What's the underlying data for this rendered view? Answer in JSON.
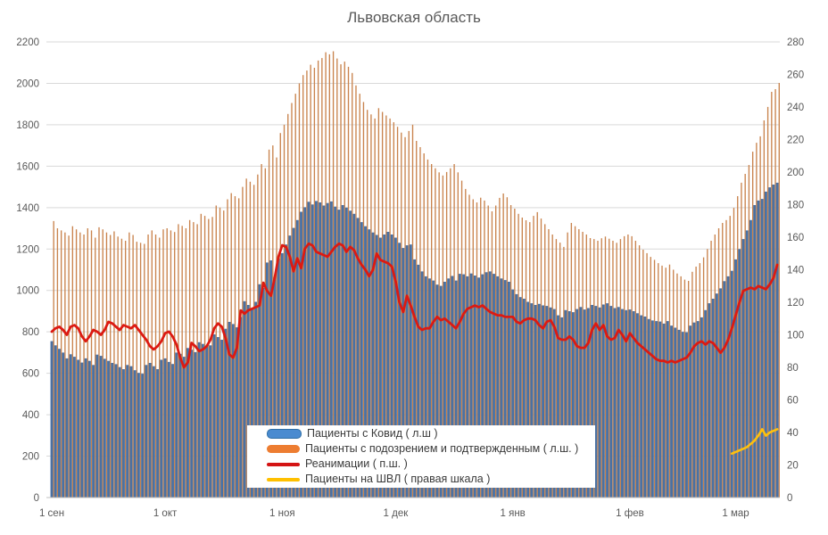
{
  "title": "Львовская область",
  "legend": {
    "items": [
      {
        "label": "Пациенты с Ковид ( л.ш )",
        "swatch": "bar",
        "color": "#4a8bd0",
        "border": "#2e6ea6"
      },
      {
        "label": "Пациенты с подозрением и подтвержденным ( л.ш. )",
        "swatch": "bar",
        "color": "#ed7d31",
        "border": "#ed7d31"
      },
      {
        "label": "Реанимации ( п.ш. )",
        "swatch": "line",
        "color": "#d41414",
        "border": "#d41414"
      },
      {
        "label": "Пациенты на ШВЛ ( правая шкала )",
        "swatch": "line",
        "color": "#ffc000",
        "border": "#ffc000"
      }
    ]
  },
  "axes": {
    "left_ticks": [
      "0",
      "200",
      "400",
      "600",
      "800",
      "1000",
      "1200",
      "1400",
      "1600",
      "1800",
      "2000",
      "2200"
    ],
    "right_ticks": [
      "0",
      "20",
      "40",
      "60",
      "80",
      "100",
      "120",
      "140",
      "160",
      "180",
      "200",
      "220",
      "240",
      "260",
      "280"
    ],
    "x_ticks": [
      {
        "label": "1 сен",
        "day": 0
      },
      {
        "label": "1 окт",
        "day": 30
      },
      {
        "label": "1 ноя",
        "day": 61
      },
      {
        "label": "1 дек",
        "day": 91
      },
      {
        "label": "1 янв",
        "day": 122
      },
      {
        "label": "1 фев",
        "day": 153
      },
      {
        "label": "1 мар",
        "day": 181
      }
    ]
  },
  "chart_data": {
    "type": "bar",
    "subtype": "combo-bars-and-lines",
    "title": "Львовская область",
    "x_range": "2020-09-01 .. 2021-03-12 (daily)",
    "left_axis": {
      "min": 0,
      "max": 2200,
      "step": 200
    },
    "right_axis": {
      "min": 0,
      "max": 280,
      "step": 20
    },
    "grid": "horizontal",
    "legend_position": "bottom-center-overlay",
    "colors": {
      "covid_bars": "#4a71a3",
      "suspected_bars": "#c9834d",
      "icu_line": "#dc1a12",
      "ventilator_line": "#fec10d",
      "gridline": "#d9d9d9",
      "axis_text": "#595959"
    },
    "series": [
      {
        "name": "Пациенты с Ковид ( л.ш )",
        "type": "bar",
        "axis": "left",
        "values": [
          755,
          735,
          718,
          700,
          672,
          692,
          680,
          665,
          652,
          672,
          660,
          640,
          690,
          684,
          670,
          660,
          650,
          644,
          630,
          620,
          640,
          634,
          615,
          602,
          598,
          640,
          650,
          634,
          620,
          665,
          672,
          655,
          645,
          700,
          694,
          680,
          722,
          714,
          702,
          750,
          742,
          728,
          735,
          788,
          775,
          762,
          815,
          848,
          838,
          822,
          872,
          948,
          930,
          915,
          945,
          1030,
          1012,
          1135,
          1145,
          1062,
          1155,
          1180,
          1222,
          1265,
          1302,
          1340,
          1380,
          1402,
          1428,
          1415,
          1432,
          1425,
          1410,
          1422,
          1430,
          1405,
          1390,
          1412,
          1400,
          1385,
          1370,
          1350,
          1330,
          1310,
          1295,
          1280,
          1268,
          1255,
          1270,
          1283,
          1270,
          1255,
          1230,
          1205,
          1218,
          1222,
          1150,
          1124,
          1092,
          1068,
          1058,
          1048,
          1028,
          1022,
          1042,
          1058,
          1070,
          1048,
          1080,
          1078,
          1068,
          1082,
          1072,
          1062,
          1078,
          1088,
          1092,
          1080,
          1068,
          1058,
          1050,
          1042,
          1005,
          982,
          968,
          960,
          945,
          938,
          930,
          935,
          928,
          925,
          918,
          910,
          880,
          870,
          905,
          900,
          895,
          910,
          920,
          908,
          915,
          930,
          925,
          918,
          932,
          938,
          925,
          915,
          920,
          910,
          905,
          908,
          900,
          890,
          880,
          874,
          862,
          855,
          852,
          850,
          840,
          852,
          830,
          820,
          810,
          800,
          798,
          830,
          845,
          852,
          870,
          905,
          938,
          960,
          985,
          1010,
          1045,
          1068,
          1095,
          1150,
          1200,
          1248,
          1290,
          1340,
          1412,
          1434,
          1442,
          1477,
          1498,
          1511,
          1520
        ]
      },
      {
        "name": "Пациенты с подозрением и подтвержденным ( л.ш. )",
        "type": "bar",
        "axis": "left",
        "values": [
          1335,
          1300,
          1290,
          1280,
          1265,
          1310,
          1295,
          1280,
          1270,
          1300,
          1290,
          1255,
          1305,
          1295,
          1280,
          1268,
          1285,
          1260,
          1250,
          1240,
          1280,
          1268,
          1235,
          1230,
          1225,
          1270,
          1290,
          1270,
          1255,
          1295,
          1300,
          1290,
          1282,
          1320,
          1312,
          1300,
          1340,
          1330,
          1320,
          1370,
          1360,
          1345,
          1355,
          1410,
          1400,
          1386,
          1440,
          1470,
          1455,
          1445,
          1500,
          1540,
          1525,
          1510,
          1560,
          1610,
          1590,
          1680,
          1700,
          1642,
          1760,
          1800,
          1852,
          1905,
          1950,
          2000,
          2040,
          2062,
          2090,
          2075,
          2110,
          2122,
          2150,
          2140,
          2155,
          2120,
          2092,
          2105,
          2080,
          2050,
          1990,
          1950,
          1910,
          1872,
          1850,
          1830,
          1880,
          1862,
          1845,
          1830,
          1812,
          1790,
          1762,
          1740,
          1770,
          1800,
          1722,
          1692,
          1662,
          1632,
          1610,
          1590,
          1570,
          1555,
          1572,
          1590,
          1610,
          1570,
          1530,
          1490,
          1462,
          1440,
          1425,
          1448,
          1434,
          1410,
          1382,
          1410,
          1447,
          1468,
          1450,
          1412,
          1395,
          1370,
          1352,
          1339,
          1330,
          1360,
          1378,
          1347,
          1320,
          1296,
          1270,
          1248,
          1231,
          1210,
          1280,
          1326,
          1310,
          1296,
          1283,
          1270,
          1253,
          1248,
          1240,
          1252,
          1260,
          1250,
          1240,
          1230,
          1248,
          1262,
          1270,
          1262,
          1240,
          1218,
          1197,
          1180,
          1162,
          1148,
          1132,
          1120,
          1110,
          1125,
          1100,
          1082,
          1068,
          1052,
          1046,
          1090,
          1115,
          1132,
          1160,
          1200,
          1240,
          1270,
          1300,
          1326,
          1340,
          1360,
          1399,
          1455,
          1520,
          1563,
          1606,
          1670,
          1713,
          1744,
          1821,
          1886,
          1959,
          1972,
          2002
        ]
      },
      {
        "name": "Реанимации ( п.ш. )",
        "type": "line",
        "axis": "right",
        "values": [
          102,
          104,
          105,
          103,
          100,
          105,
          106,
          104,
          99,
          96,
          99,
          103,
          102,
          100,
          103,
          108,
          107,
          105,
          103,
          106,
          105,
          104,
          106,
          103,
          100,
          97,
          93,
          91,
          93,
          96,
          101,
          102,
          99,
          94,
          86,
          80,
          83,
          95,
          93,
          90,
          91,
          93,
          97,
          104,
          107,
          105,
          98,
          88,
          86,
          92,
          115,
          113,
          115,
          116,
          117,
          118,
          132,
          127,
          124,
          135,
          148,
          155,
          154,
          148,
          139,
          147,
          141,
          153,
          156,
          155,
          151,
          150,
          149,
          148,
          151,
          154,
          156,
          155,
          151,
          154,
          152,
          147,
          143,
          140,
          136,
          140,
          150,
          146,
          145,
          144,
          142,
          133,
          120,
          114,
          124,
          118,
          111,
          105,
          103,
          104,
          104,
          108,
          111,
          109,
          110,
          108,
          106,
          104,
          108,
          113,
          116,
          117,
          118,
          117,
          118,
          116,
          114,
          113,
          112,
          112,
          111,
          111,
          111,
          108,
          107,
          109,
          110,
          110,
          109,
          106,
          104,
          108,
          109,
          105,
          98,
          97,
          97,
          99,
          97,
          93,
          92,
          92,
          95,
          103,
          107,
          103,
          106,
          99,
          97,
          98,
          103,
          100,
          96,
          101,
          98,
          95,
          93,
          91,
          89,
          87,
          85,
          84,
          84,
          83,
          84,
          83,
          84,
          85,
          86,
          89,
          93,
          95,
          96,
          94,
          96,
          95,
          92,
          89,
          92,
          97,
          104,
          112,
          120,
          127,
          128,
          129,
          128,
          130,
          129,
          128,
          131,
          135,
          143
        ]
      },
      {
        "name": "Пациенты на ШВЛ ( правая шкала )",
        "type": "line",
        "axis": "right",
        "start_index": 180,
        "values": [
          27,
          28,
          29,
          30,
          31,
          33,
          35,
          38,
          42,
          38,
          40,
          41,
          42
        ]
      }
    ]
  }
}
